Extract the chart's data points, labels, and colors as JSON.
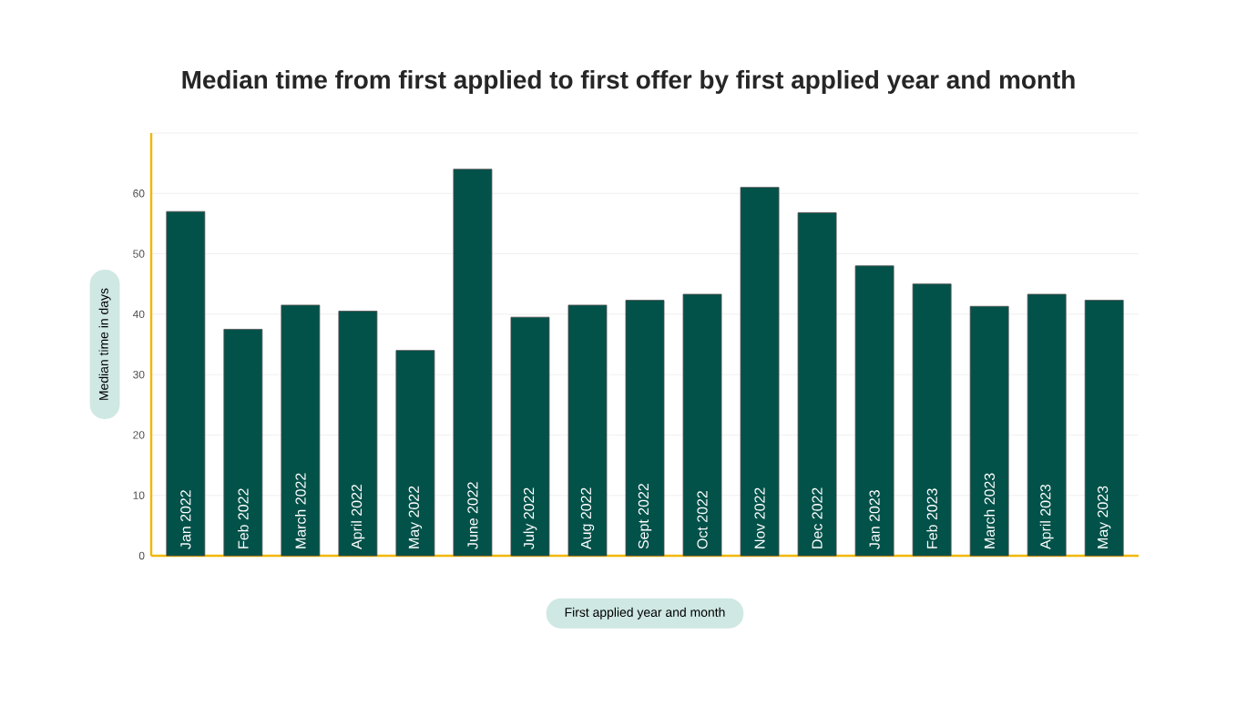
{
  "chart_data": {
    "type": "bar",
    "title": "Median time from first applied to first offer by first applied year and month",
    "xlabel": "First applied year and month",
    "ylabel": "Median time in days",
    "categories": [
      "Jan 2022",
      "Feb 2022",
      "March 2022",
      "April 2022",
      "May 2022",
      "June 2022",
      "July 2022",
      "Aug 2022",
      "Sept 2022",
      "Oct 2022",
      "Nov 2022",
      "Dec 2022",
      "Jan 2023",
      "Feb 2023",
      "March 2023",
      "April 2023",
      "May 2023"
    ],
    "values": [
      57,
      37.5,
      41.5,
      40.5,
      34,
      64,
      39.5,
      41.5,
      42.3,
      43.3,
      61,
      56.8,
      48,
      45,
      41.3,
      43.3,
      42.3
    ],
    "color": "#03524a",
    "ylim": [
      0,
      70
    ],
    "yticks": [
      0,
      10,
      20,
      30,
      40,
      50,
      60,
      {
        "value": 70,
        "label": null
      }
    ],
    "grid": "y"
  }
}
